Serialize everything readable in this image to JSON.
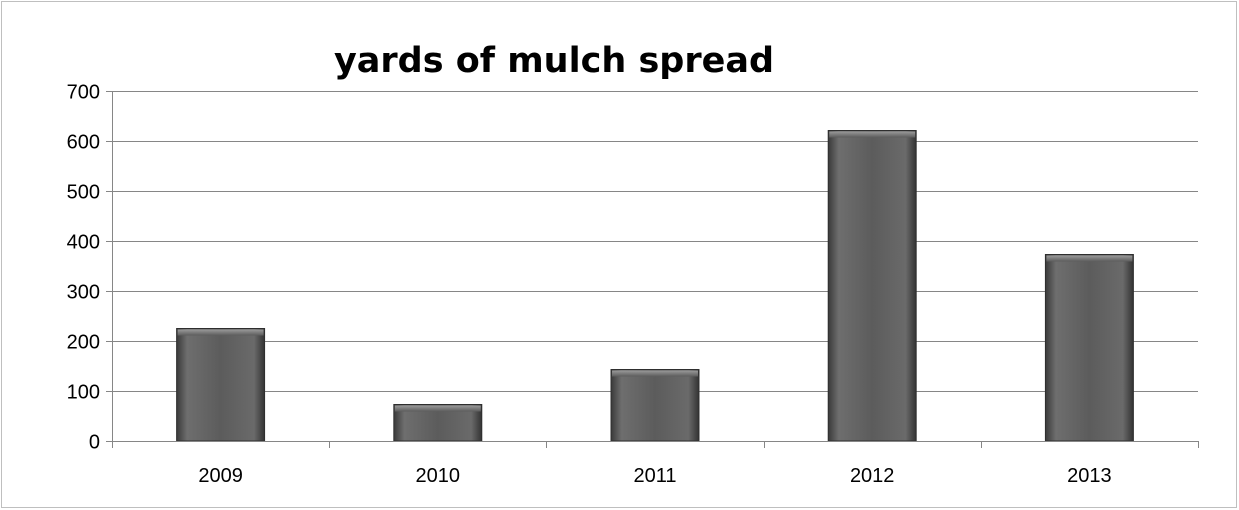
{
  "chart_data": {
    "type": "bar",
    "title": "yards of mulch spread",
    "xlabel": "",
    "ylabel": "",
    "categories": [
      "2009",
      "2010",
      "2011",
      "2012",
      "2013"
    ],
    "values": [
      225,
      73,
      143,
      621,
      373
    ],
    "ylim": [
      0,
      700
    ],
    "yticks": [
      0,
      100,
      200,
      300,
      400,
      500,
      600,
      700
    ],
    "grid": true,
    "legend": "none",
    "colors": {
      "bar": "#5a5a5a",
      "bar_light": "#7a7a7a",
      "bar_dark": "#333333",
      "gridline": "#868686",
      "axis": "#868686"
    }
  }
}
